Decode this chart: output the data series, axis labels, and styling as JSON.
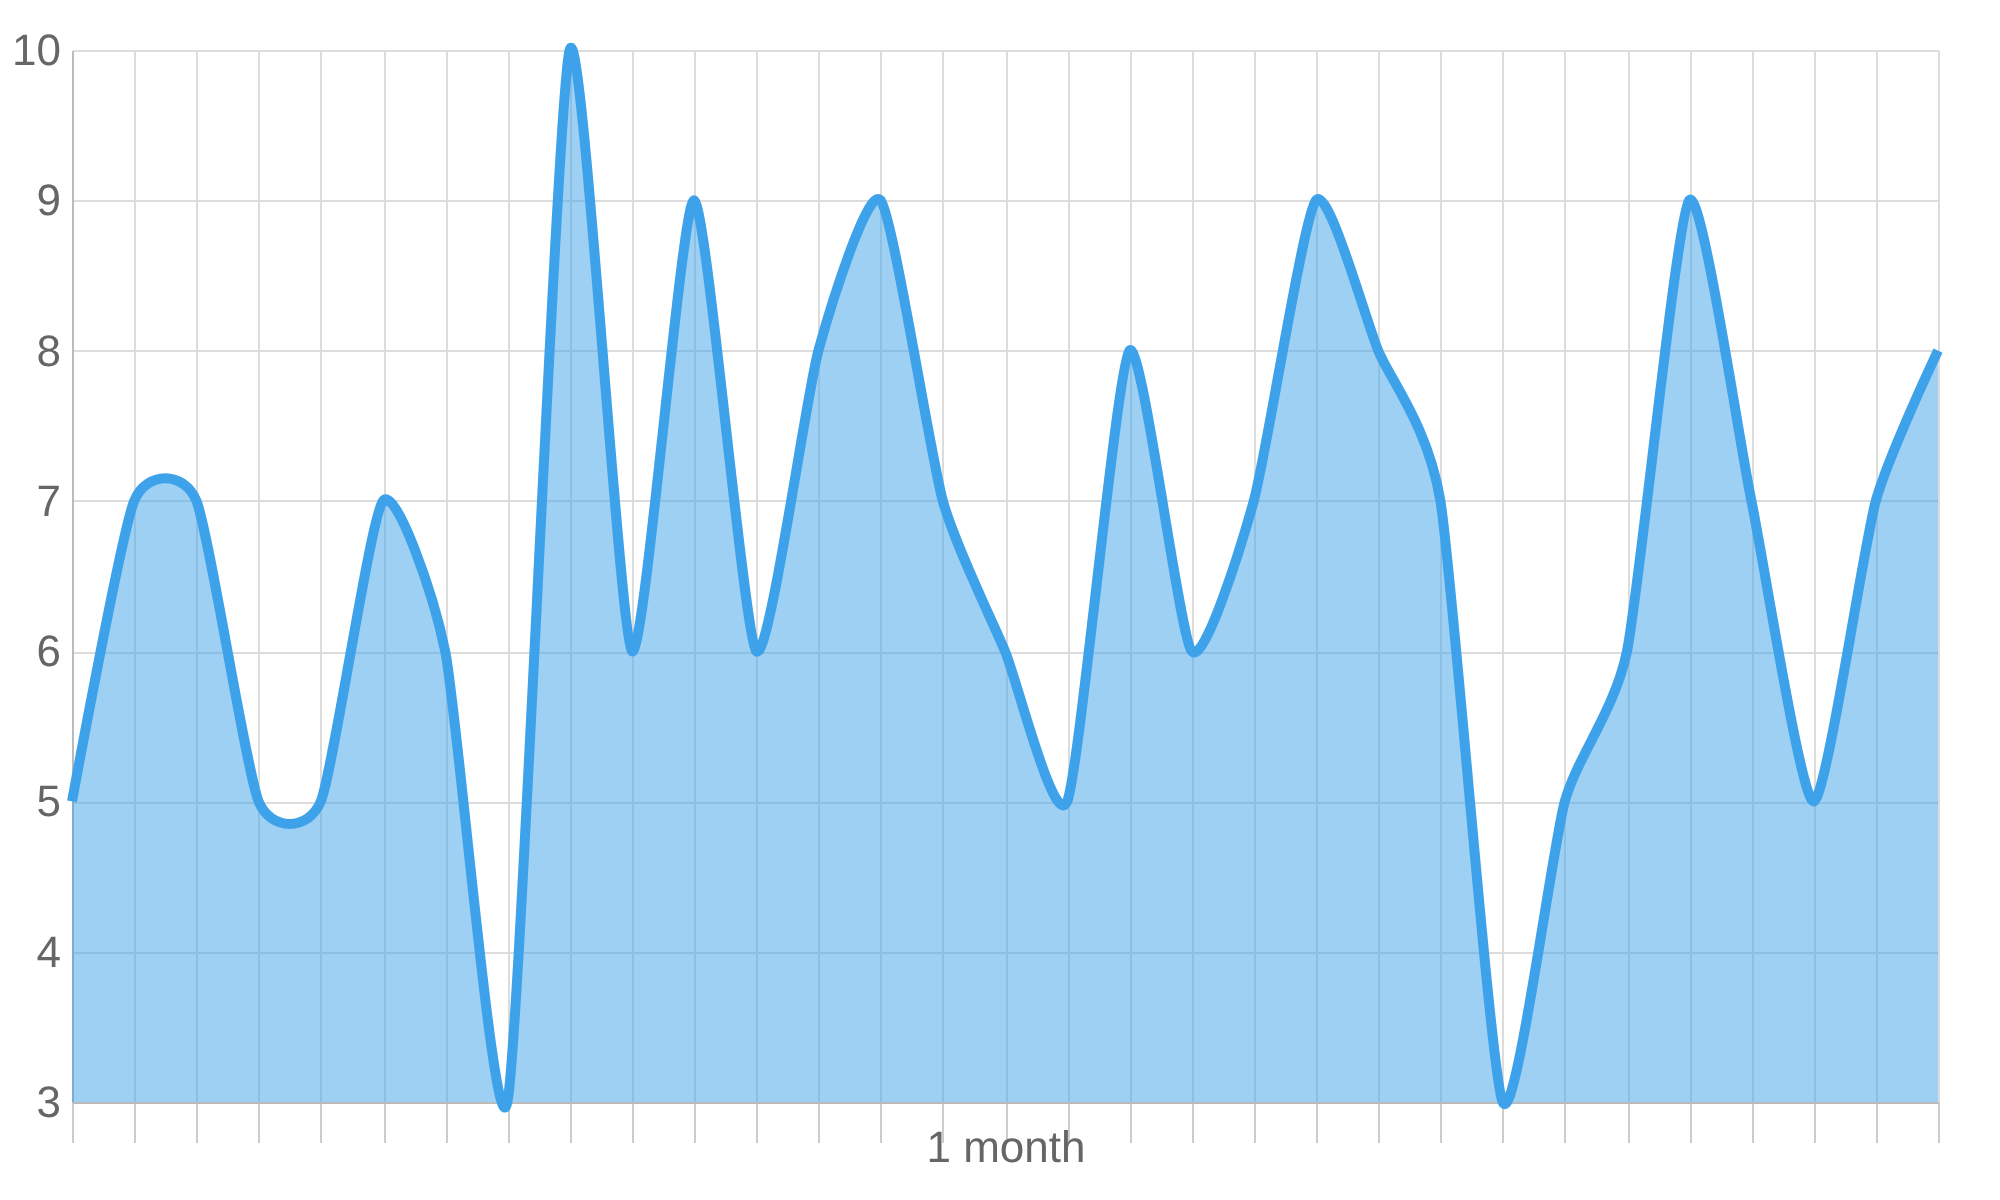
{
  "chart_data": {
    "type": "area",
    "xlabel": "1 month",
    "categories": [
      null,
      null,
      null,
      null,
      null,
      null,
      null,
      null,
      null,
      null,
      null,
      null,
      null,
      null,
      null,
      null,
      null,
      null,
      null,
      null,
      null,
      null,
      null,
      null,
      null,
      null,
      null,
      null,
      null,
      null,
      null
    ],
    "values": [
      5,
      7,
      7,
      5,
      5,
      7,
      6,
      3,
      10,
      6,
      9,
      6,
      8,
      9,
      7,
      6,
      5,
      8,
      6,
      7,
      9,
      8,
      7,
      3,
      5,
      6,
      9,
      7,
      5,
      7,
      8
    ],
    "color": "#3ea2ea",
    "ylim": [
      3,
      10
    ],
    "yticks": [
      3,
      4,
      5,
      6,
      7,
      8,
      9,
      10
    ],
    "grid": true
  }
}
